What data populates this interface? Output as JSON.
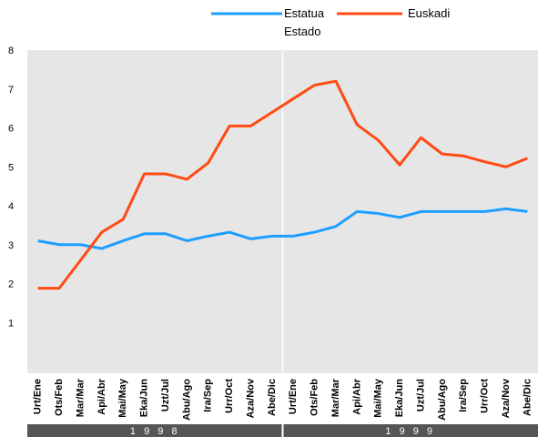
{
  "chart_data": {
    "type": "line",
    "categories": [
      "Urt/Ene",
      "Ots/Feb",
      "Mar/Mar",
      "Api/Abr",
      "Mai/May",
      "Eka/Jun",
      "Uzt/Jul",
      "Abu/Ago",
      "Ira/Sep",
      "Urr/Oct",
      "Aza/Nov",
      "Abe/Dic",
      "Urt/Ene",
      "Ots/Feb",
      "Mar/Mar",
      "Api/Abr",
      "Mai/May",
      "Eka/Jun",
      "Uzt/Jul",
      "Abu/Ago",
      "Ira/Sep",
      "Urr/Oct",
      "Aza/Nov",
      "Abe/Dic"
    ],
    "year_groups": [
      "1 9 9 8",
      "1 9 9 9"
    ],
    "series": [
      {
        "name": "Estatua Estado",
        "color": "#1e9fff",
        "values": [
          3.1,
          3.0,
          3.0,
          2.9,
          3.1,
          3.28,
          3.28,
          3.1,
          3.22,
          3.32,
          3.15,
          3.22,
          3.22,
          3.32,
          3.47,
          3.85,
          3.8,
          3.7,
          3.85,
          3.85,
          3.85,
          3.85,
          3.92,
          3.85
        ]
      },
      {
        "name": "Euskadi",
        "color": "#ff4a12",
        "values": [
          1.88,
          1.88,
          2.6,
          3.32,
          3.65,
          4.82,
          4.82,
          4.68,
          5.1,
          6.05,
          6.05,
          6.4,
          6.75,
          7.1,
          7.2,
          6.08,
          5.68,
          5.05,
          5.75,
          5.33,
          5.28,
          5.13,
          5.0,
          5.22
        ]
      }
    ],
    "ylim": [
      0,
      8
    ],
    "yticks": [
      1,
      2,
      3,
      4,
      5,
      6,
      7,
      8
    ],
    "grid": false
  }
}
